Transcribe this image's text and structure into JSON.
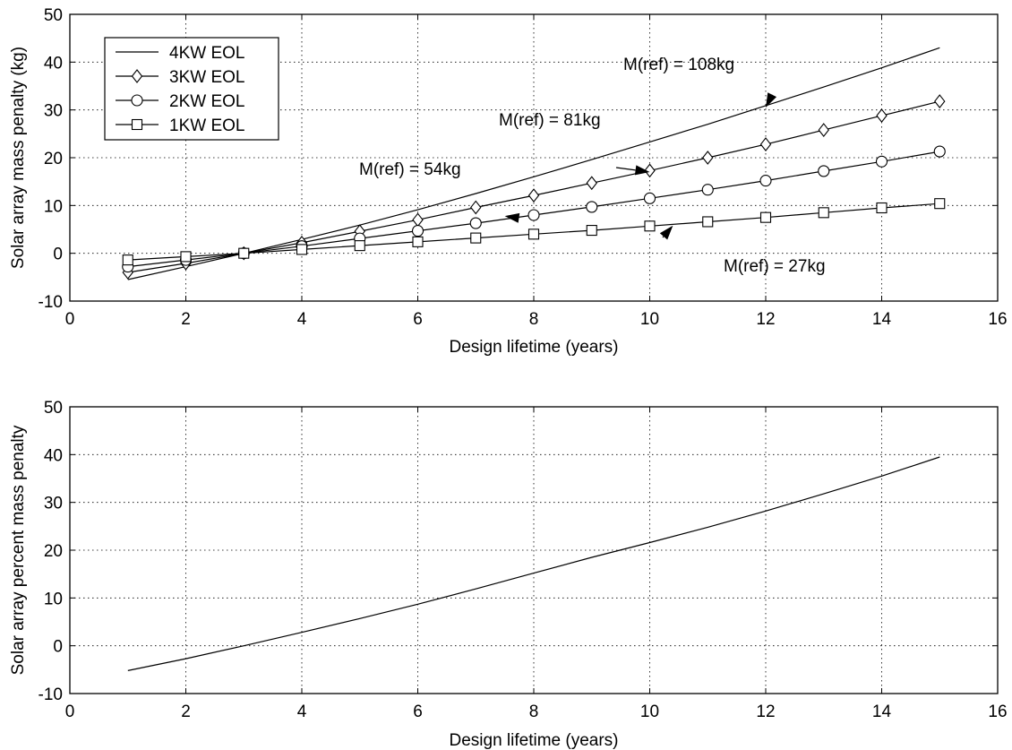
{
  "chart_data": [
    {
      "type": "line",
      "title": "",
      "xlabel": "Design lifetime (years)",
      "ylabel": "Solar array mass penalty (kg)",
      "xlim": [
        0,
        16
      ],
      "ylim": [
        -10,
        50
      ],
      "xticks": [
        0,
        2,
        4,
        6,
        8,
        10,
        12,
        14,
        16
      ],
      "yticks": [
        -10,
        0,
        10,
        20,
        30,
        40,
        50
      ],
      "grid": true,
      "legend": "top-left",
      "x": [
        1,
        2,
        3,
        4,
        5,
        6,
        7,
        8,
        9,
        10,
        11,
        12,
        13,
        14,
        15
      ],
      "series": [
        {
          "name": "4KW EOL",
          "marker": "none",
          "values": [
            -5.5,
            -2.8,
            0,
            2.9,
            5.9,
            9.1,
            12.5,
            16.0,
            19.6,
            23.3,
            27.0,
            30.9,
            34.8,
            38.8,
            43.0
          ]
        },
        {
          "name": "3KW EOL",
          "marker": "diamond",
          "values": [
            -4.0,
            -2.1,
            0,
            2.2,
            4.6,
            7.0,
            9.6,
            12.1,
            14.7,
            17.3,
            20.0,
            22.8,
            25.8,
            28.8,
            31.8
          ]
        },
        {
          "name": "2KW EOL",
          "marker": "circle",
          "values": [
            -2.8,
            -1.4,
            0,
            1.5,
            3.1,
            4.7,
            6.3,
            8.0,
            9.7,
            11.5,
            13.3,
            15.2,
            17.2,
            19.2,
            21.3
          ]
        },
        {
          "name": "1KW EOL",
          "marker": "square",
          "values": [
            -1.4,
            -0.7,
            0,
            0.8,
            1.6,
            2.4,
            3.2,
            4.0,
            4.8,
            5.7,
            6.6,
            7.5,
            8.5,
            9.5,
            10.4
          ]
        }
      ],
      "annotations": [
        {
          "text": "M(ref) = 108kg",
          "target_x": 12.0,
          "target_y": 30.5
        },
        {
          "text": "M(ref) = 81kg",
          "target_x": 10.0,
          "target_y": 17.0
        },
        {
          "text": "M(ref) = 54kg",
          "target_x": 7.5,
          "target_y": 7.8
        },
        {
          "text": "M(ref) = 27kg",
          "target_x": 10.4,
          "target_y": 5.8
        }
      ]
    },
    {
      "type": "line",
      "title": "",
      "xlabel": "Design lifetime (years)",
      "ylabel": "Solar array percent mass penalty",
      "xlim": [
        0,
        16
      ],
      "ylim": [
        -10,
        50
      ],
      "xticks": [
        0,
        2,
        4,
        6,
        8,
        10,
        12,
        14,
        16
      ],
      "yticks": [
        -10,
        0,
        10,
        20,
        30,
        40,
        50
      ],
      "grid": true,
      "x": [
        1,
        2,
        3,
        4,
        5,
        6,
        7,
        8,
        9,
        10,
        11,
        12,
        13,
        14,
        15
      ],
      "series": [
        {
          "marker": "none",
          "values": [
            -5.2,
            -2.7,
            0,
            2.8,
            5.7,
            8.7,
            11.9,
            15.2,
            18.5,
            21.6,
            24.8,
            28.2,
            31.8,
            35.5,
            39.5
          ]
        }
      ]
    }
  ]
}
